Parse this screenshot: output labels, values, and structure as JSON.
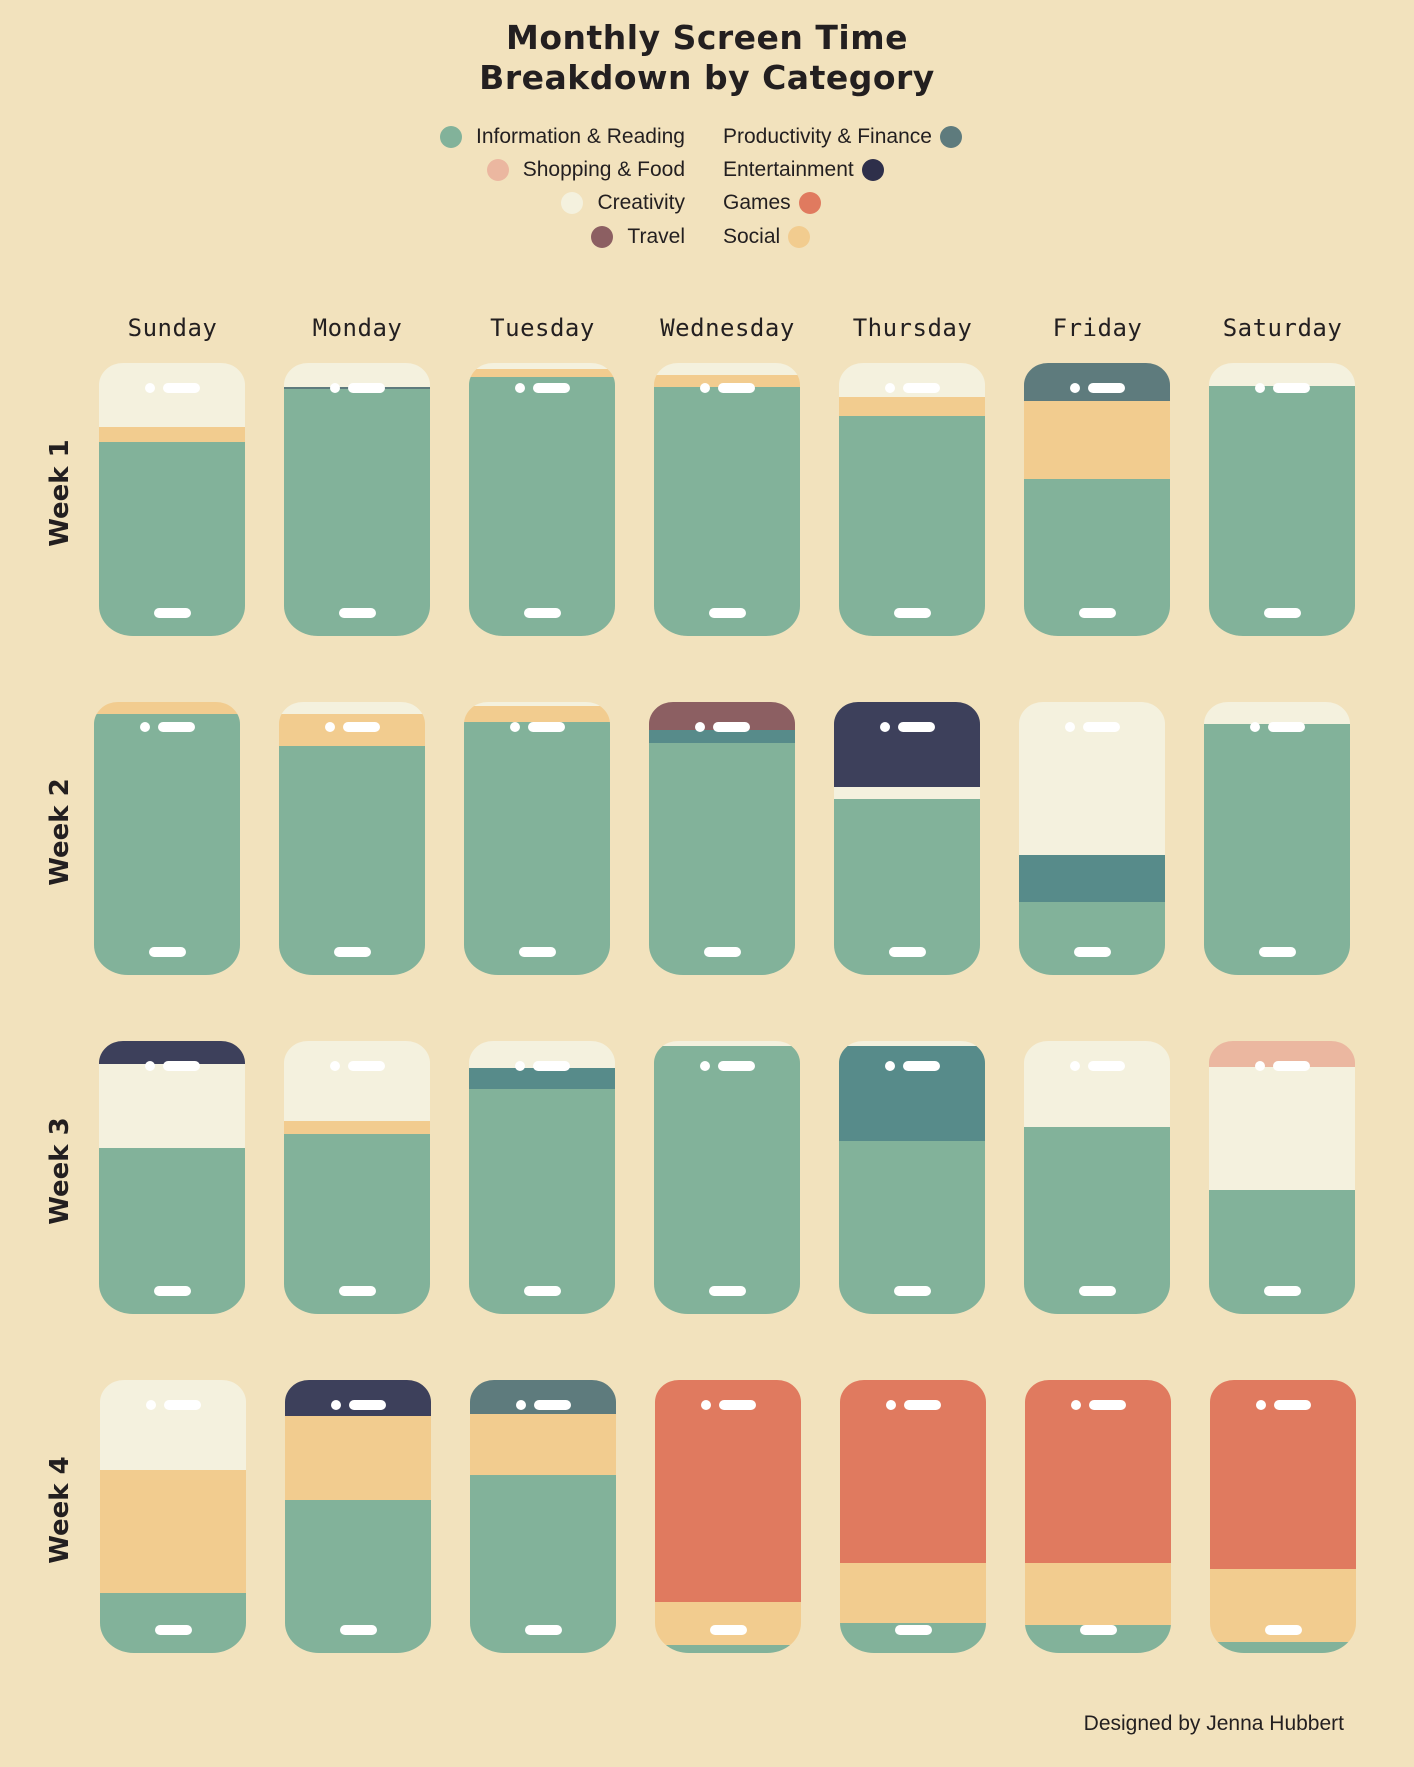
{
  "title_line1": "Monthly Screen Time",
  "title_line2": "Breakdown by Category",
  "credit": "Designed by Jenna Hubbert",
  "legend": {
    "left": [
      {
        "label": "Information & Reading",
        "color": "#82B29A"
      },
      {
        "label": "Shopping & Food",
        "color": "#EBB7A0"
      },
      {
        "label": "Creativity",
        "color": "#F4F1DE"
      },
      {
        "label": "Travel",
        "color": "#8C5F62"
      }
    ],
    "right": [
      {
        "label": "Productivity & Finance",
        "color": "#5E7B7D"
      },
      {
        "label": "Entertainment",
        "color": "#2E2F4A"
      },
      {
        "label": "Games",
        "color": "#E07A5F"
      },
      {
        "label": "Social",
        "color": "#F2CC8F"
      }
    ]
  },
  "days": [
    "Sunday",
    "Monday",
    "Tuesday",
    "Wednesday",
    "Thursday",
    "Friday",
    "Saturday"
  ],
  "weeks": [
    "Week 1",
    "Week 2",
    "Week 3",
    "Week 4"
  ],
  "chart_data": {
    "type": "stacked-bar",
    "title": "Monthly Screen Time Breakdown by Category",
    "units": "percent of daily screen time (estimated from segment heights)",
    "categories": [
      "Information & Reading",
      "Shopping & Food",
      "Creativity",
      "Travel",
      "Productivity & Finance",
      "Entertainment",
      "Games",
      "Social"
    ],
    "colors": {
      "Information & Reading": "#82B29A",
      "Shopping & Food": "#EBB7A0",
      "Creativity": "#F4F1DE",
      "Travel": "#8C5F62",
      "Productivity & Finance": "#5E7B7D",
      "Productivity & Finance (alt teal)": "#578B8A",
      "Entertainment": "#3D405B",
      "Games": "#E07A5F",
      "Social": "#F2CC8F"
    },
    "legend_position": "top",
    "grid": "weeks (rows) x days (columns)",
    "weeks": [
      {
        "week": "Week 1",
        "days": [
          {
            "day": "Sunday",
            "segments": [
              [
                "Creativity",
                23.4,
                "#F4F1DE"
              ],
              [
                "Social",
                5.5,
                "#F2CC8F"
              ],
              [
                "Information & Reading",
                71.1,
                "#82B29A"
              ]
            ]
          },
          {
            "day": "Monday",
            "segments": [
              [
                "Creativity",
                8.8,
                "#F4F1DE"
              ],
              [
                "Productivity & Finance",
                0.7,
                "#5E7B7D"
              ],
              [
                "Information & Reading",
                90.5,
                "#82B29A"
              ]
            ]
          },
          {
            "day": "Tuesday",
            "segments": [
              [
                "Creativity",
                2.2,
                "#F4F1DE"
              ],
              [
                "Social",
                2.9,
                "#F2CC8F"
              ],
              [
                "Information & Reading",
                94.9,
                "#82B29A"
              ]
            ]
          },
          {
            "day": "Wednesday",
            "segments": [
              [
                "Creativity",
                4.4,
                "#F4F1DE"
              ],
              [
                "Social",
                4.4,
                "#F2CC8F"
              ],
              [
                "Information & Reading",
                91.2,
                "#82B29A"
              ]
            ]
          },
          {
            "day": "Thursday",
            "segments": [
              [
                "Creativity",
                12.5,
                "#F4F1DE"
              ],
              [
                "Social",
                7.0,
                "#F2CC8F"
              ],
              [
                "Information & Reading",
                80.5,
                "#82B29A"
              ]
            ]
          },
          {
            "day": "Friday",
            "segments": [
              [
                "Productivity & Finance",
                13.9,
                "#5E7B7D"
              ],
              [
                "Social",
                28.6,
                "#F2CC8F"
              ],
              [
                "Information & Reading",
                57.5,
                "#82B29A"
              ]
            ]
          },
          {
            "day": "Saturday",
            "segments": [
              [
                "Creativity",
                8.4,
                "#F4F1DE"
              ],
              [
                "Information & Reading",
                91.6,
                "#82B29A"
              ]
            ]
          }
        ]
      },
      {
        "week": "Week 2",
        "days": [
          {
            "day": "Sunday",
            "segments": [
              [
                "Social",
                4.4,
                "#F2CC8F"
              ],
              [
                "Information & Reading",
                95.6,
                "#82B29A"
              ]
            ]
          },
          {
            "day": "Monday",
            "segments": [
              [
                "Creativity",
                4.4,
                "#F4F1DE"
              ],
              [
                "Social",
                11.7,
                "#F2CC8F"
              ],
              [
                "Information & Reading",
                83.9,
                "#82B29A"
              ]
            ]
          },
          {
            "day": "Tuesday",
            "segments": [
              [
                "Creativity",
                1.5,
                "#F4F1DE"
              ],
              [
                "Social",
                5.9,
                "#F2CC8F"
              ],
              [
                "Information & Reading",
                92.6,
                "#82B29A"
              ]
            ]
          },
          {
            "day": "Wednesday",
            "segments": [
              [
                "Travel",
                10.3,
                "#8C5F62"
              ],
              [
                "Productivity & Finance",
                4.8,
                "#578B8A"
              ],
              [
                "Information & Reading",
                84.9,
                "#82B29A"
              ]
            ]
          },
          {
            "day": "Thursday",
            "segments": [
              [
                "Entertainment",
                31.1,
                "#3D405B"
              ],
              [
                "Creativity",
                4.4,
                "#F4F1DE"
              ],
              [
                "Information & Reading",
                64.5,
                "#82B29A"
              ]
            ]
          },
          {
            "day": "Friday",
            "segments": [
              [
                "Creativity",
                56.0,
                "#F4F1DE"
              ],
              [
                "Productivity & Finance",
                17.2,
                "#578B8A"
              ],
              [
                "Information & Reading",
                26.8,
                "#82B29A"
              ]
            ]
          },
          {
            "day": "Saturday",
            "segments": [
              [
                "Creativity",
                8.1,
                "#F4F1DE"
              ],
              [
                "Information & Reading",
                91.9,
                "#82B29A"
              ]
            ]
          }
        ]
      },
      {
        "week": "Week 3",
        "days": [
          {
            "day": "Sunday",
            "segments": [
              [
                "Entertainment",
                8.4,
                "#3D405B"
              ],
              [
                "Creativity",
                30.8,
                "#F4F1DE"
              ],
              [
                "Information & Reading",
                60.8,
                "#82B29A"
              ]
            ]
          },
          {
            "day": "Monday",
            "segments": [
              [
                "Creativity",
                29.3,
                "#F4F1DE"
              ],
              [
                "Social",
                4.8,
                "#F2CC8F"
              ],
              [
                "Information & Reading",
                65.9,
                "#82B29A"
              ]
            ]
          },
          {
            "day": "Tuesday",
            "segments": [
              [
                "Creativity",
                9.9,
                "#F4F1DE"
              ],
              [
                "Productivity & Finance",
                7.7,
                "#578B8A"
              ],
              [
                "Information & Reading",
                82.4,
                "#82B29A"
              ]
            ]
          },
          {
            "day": "Wednesday",
            "segments": [
              [
                "Creativity",
                1.8,
                "#F4F1DE"
              ],
              [
                "Information & Reading",
                98.2,
                "#82B29A"
              ]
            ]
          },
          {
            "day": "Thursday",
            "segments": [
              [
                "Creativity",
                1.8,
                "#F4F1DE"
              ],
              [
                "Productivity & Finance",
                34.8,
                "#578B8A"
              ],
              [
                "Information & Reading",
                63.4,
                "#82B29A"
              ]
            ]
          },
          {
            "day": "Friday",
            "segments": [
              [
                "Creativity",
                31.5,
                "#F4F1DE"
              ],
              [
                "Information & Reading",
                68.5,
                "#82B29A"
              ]
            ]
          },
          {
            "day": "Saturday",
            "segments": [
              [
                "Shopping & Food",
                9.5,
                "#EBB7A0"
              ],
              [
                "Creativity",
                45.1,
                "#F4F1DE"
              ],
              [
                "Information & Reading",
                45.4,
                "#82B29A"
              ]
            ]
          }
        ]
      },
      {
        "week": "Week 4",
        "days": [
          {
            "day": "Sunday",
            "segments": [
              [
                "Creativity",
                33.0,
                "#F4F1DE"
              ],
              [
                "Social",
                45.0,
                "#F2CC8F"
              ],
              [
                "Information & Reading",
                22.0,
                "#82B29A"
              ]
            ]
          },
          {
            "day": "Monday",
            "segments": [
              [
                "Entertainment",
                13.2,
                "#3D405B"
              ],
              [
                "Social",
                30.8,
                "#F2CC8F"
              ],
              [
                "Information & Reading",
                56.0,
                "#82B29A"
              ]
            ]
          },
          {
            "day": "Tuesday",
            "segments": [
              [
                "Productivity & Finance",
                12.5,
                "#5E7B7D"
              ],
              [
                "Social",
                22.3,
                "#F2CC8F"
              ],
              [
                "Information & Reading",
                65.2,
                "#82B29A"
              ]
            ]
          },
          {
            "day": "Wednesday",
            "segments": [
              [
                "Games",
                81.3,
                "#E07A5F"
              ],
              [
                "Social",
                15.8,
                "#F2CC8F"
              ],
              [
                "Information & Reading",
                2.9,
                "#82B29A"
              ]
            ]
          },
          {
            "day": "Thursday",
            "segments": [
              [
                "Games",
                67.0,
                "#E07A5F"
              ],
              [
                "Social",
                22.0,
                "#F2CC8F"
              ],
              [
                "Information & Reading",
                11.0,
                "#82B29A"
              ]
            ]
          },
          {
            "day": "Friday",
            "segments": [
              [
                "Games",
                67.0,
                "#E07A5F"
              ],
              [
                "Social",
                22.7,
                "#F2CC8F"
              ],
              [
                "Information & Reading",
                10.3,
                "#82B29A"
              ]
            ]
          },
          {
            "day": "Saturday",
            "segments": [
              [
                "Games",
                69.2,
                "#E07A5F"
              ],
              [
                "Social",
                26.8,
                "#F2CC8F"
              ],
              [
                "Information & Reading",
                4.0,
                "#82B29A"
              ]
            ]
          }
        ]
      }
    ]
  }
}
